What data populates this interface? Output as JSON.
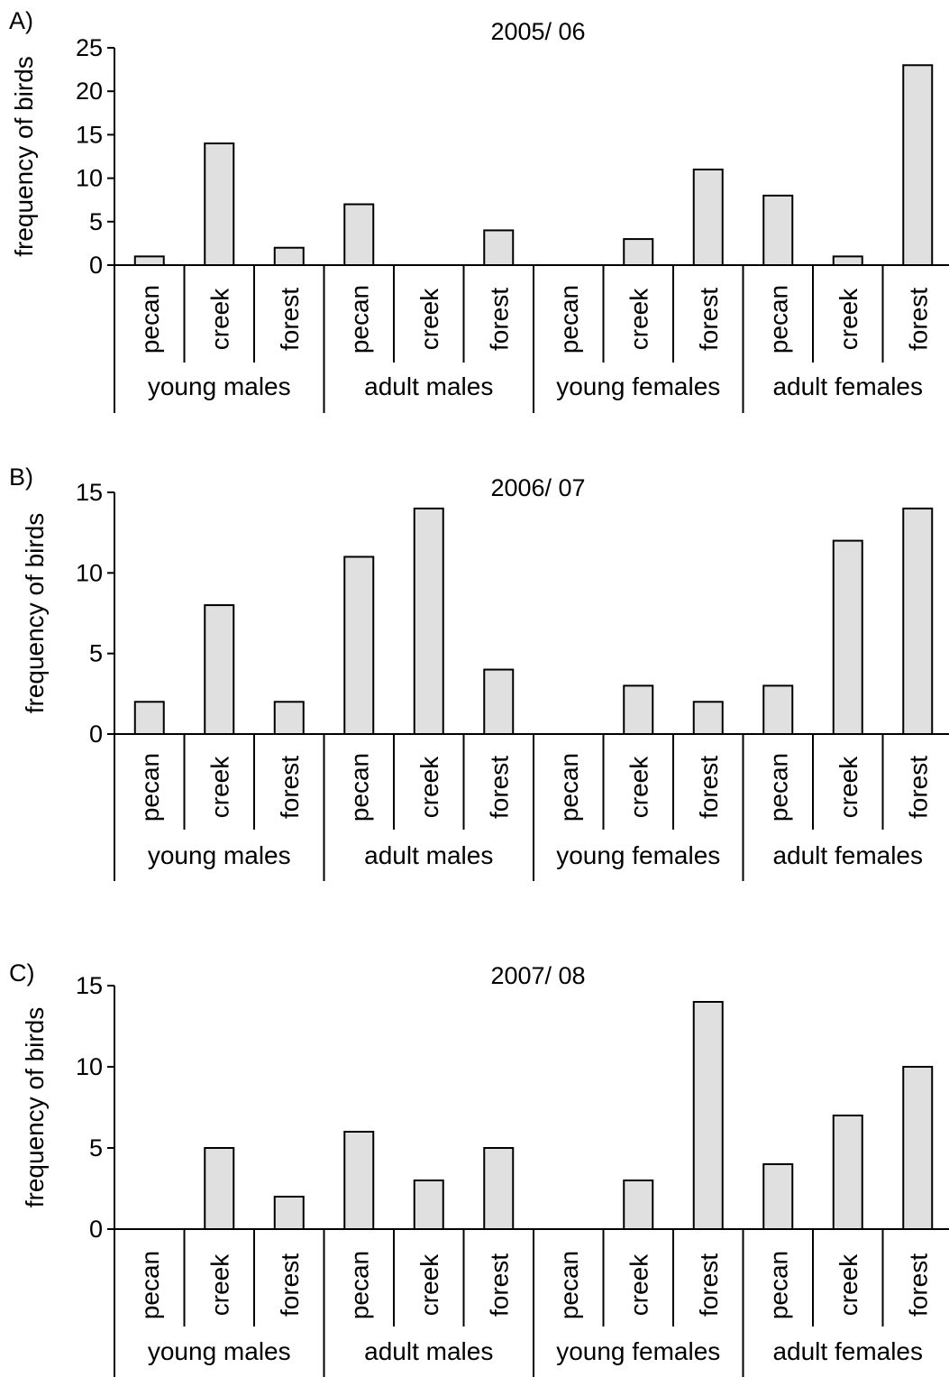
{
  "figure": {
    "colors": {
      "bar_fill": "#e0e0e0",
      "bar_stroke": "#000000",
      "axis": "#000000"
    }
  },
  "chart_data": [
    {
      "type": "bar",
      "panel_label": "A)",
      "title": "2005/ 06",
      "ylabel": "frequency of birds",
      "xlabel": "",
      "ylim": [
        0,
        25
      ],
      "yticks": [
        "0",
        "5",
        "10",
        "15",
        "20",
        "25"
      ],
      "grid": false,
      "legend": "none",
      "groups": [
        "young males",
        "adult males",
        "young females",
        "adult females"
      ],
      "categories": [
        "pecan",
        "creek",
        "forest",
        "pecan",
        "creek",
        "forest",
        "pecan",
        "creek",
        "forest",
        "pecan",
        "creek",
        "forest"
      ],
      "values": [
        1,
        14,
        2,
        7,
        0,
        4,
        0,
        3,
        11,
        8,
        1,
        23
      ]
    },
    {
      "type": "bar",
      "panel_label": "B)",
      "title": "2006/ 07",
      "ylabel": "frequency of birds",
      "xlabel": "",
      "ylim": [
        0,
        15
      ],
      "yticks": [
        "0",
        "5",
        "10",
        "15"
      ],
      "grid": false,
      "legend": "none",
      "groups": [
        "young males",
        "adult males",
        "young females",
        "adult females"
      ],
      "categories": [
        "pecan",
        "creek",
        "forest",
        "pecan",
        "creek",
        "forest",
        "pecan",
        "creek",
        "forest",
        "pecan",
        "creek",
        "forest"
      ],
      "values": [
        2,
        8,
        2,
        11,
        14,
        4,
        0,
        3,
        2,
        3,
        12,
        14
      ]
    },
    {
      "type": "bar",
      "panel_label": "C)",
      "title": "2007/ 08",
      "ylabel": "frequency of birds",
      "xlabel": "",
      "ylim": [
        0,
        15
      ],
      "yticks": [
        "0",
        "5",
        "10",
        "15"
      ],
      "grid": false,
      "legend": "none",
      "groups": [
        "young males",
        "adult males",
        "young females",
        "adult females"
      ],
      "categories": [
        "pecan",
        "creek",
        "forest",
        "pecan",
        "creek",
        "forest",
        "pecan",
        "creek",
        "forest",
        "pecan",
        "creek",
        "forest"
      ],
      "values": [
        0,
        5,
        2,
        6,
        3,
        5,
        0,
        3,
        14,
        4,
        7,
        10
      ]
    }
  ]
}
